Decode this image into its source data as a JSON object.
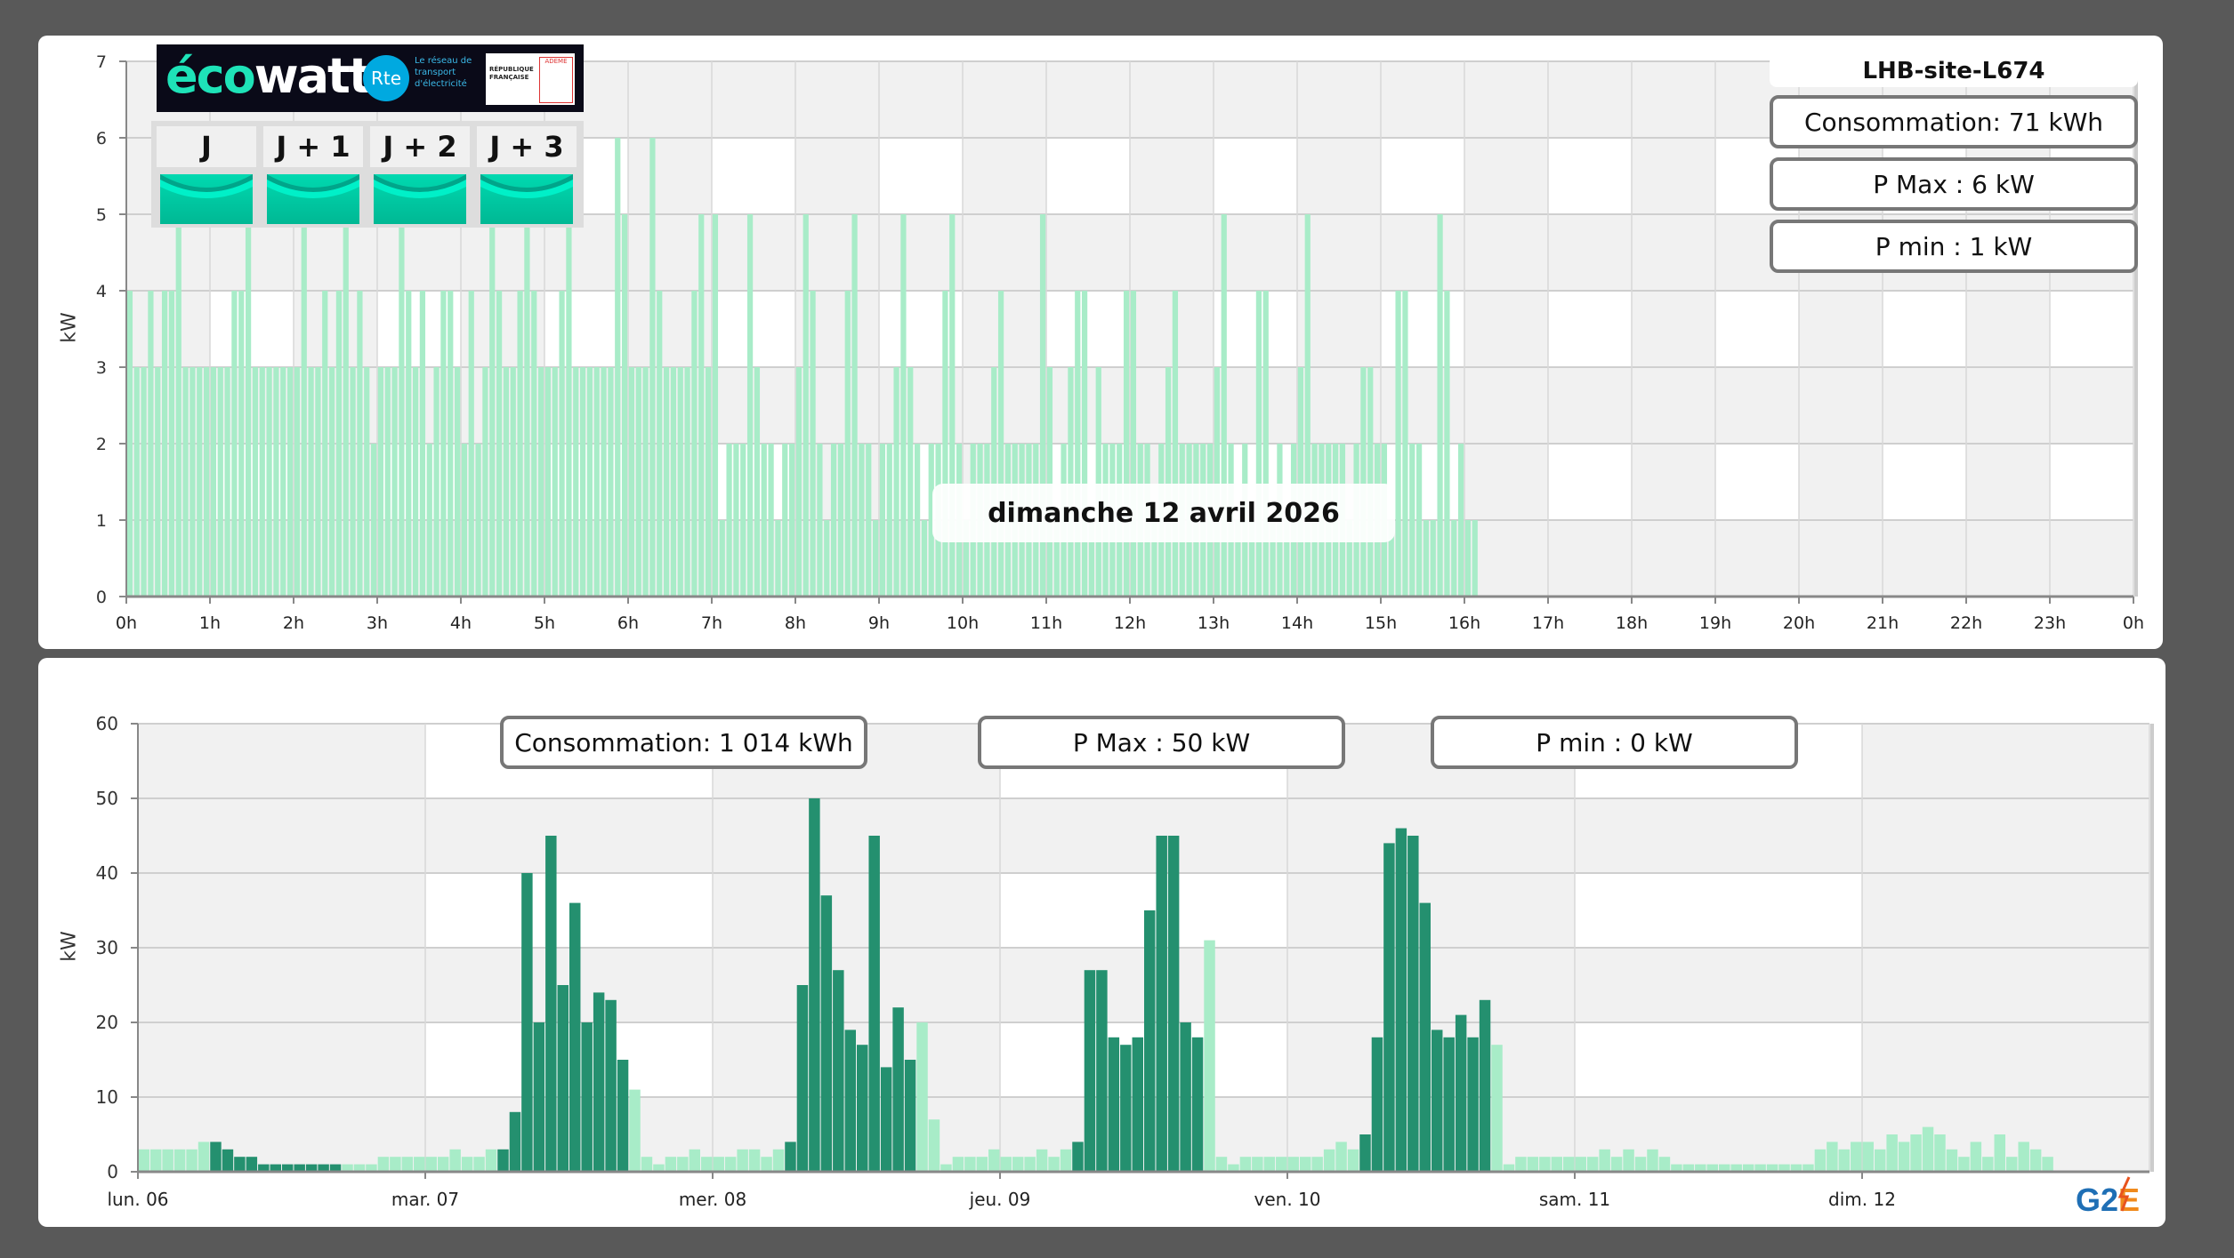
{
  "colors": {
    "bar_light": "#a8ecc8",
    "bar_dark": "#24906f",
    "grid_shade": "#f1f1f1",
    "ecowatt_signal": "#00c8a5"
  },
  "ecowatt": {
    "logo_text": "écowatt",
    "rte_text": "Rte",
    "rte_subtitle": "Le réseau de transport d'électricité",
    "republique_text": "RÉPUBLIQUE FRANÇAISE",
    "ademe_text": "ADEME",
    "days": [
      {
        "label": "J",
        "signal": "green"
      },
      {
        "label": "J + 1",
        "signal": "green"
      },
      {
        "label": "J + 2",
        "signal": "green"
      },
      {
        "label": "J + 3",
        "signal": "green"
      }
    ]
  },
  "top": {
    "site": "LHB-site-L674",
    "consommation": "Consommation: 71 kWh",
    "pmax": "P Max :  6 kW",
    "pmin": "P min : 1 kW",
    "date": "dimanche 12 avril 2026"
  },
  "bottom": {
    "consommation": "Consommation: 1 014 kWh",
    "pmax": "P Max :  50 kW",
    "pmin": "P min : 0 kW",
    "logo_text": "G2E"
  },
  "chart_data": [
    {
      "type": "bar",
      "ylabel": "kW",
      "ylim": [
        0,
        7
      ],
      "yticks": [
        "0",
        "1",
        "2",
        "3",
        "4",
        "5",
        "6",
        "7"
      ],
      "xticks": [
        "0h",
        "1h",
        "2h",
        "3h",
        "4h",
        "5h",
        "6h",
        "7h",
        "8h",
        "9h",
        "10h",
        "11h",
        "12h",
        "13h",
        "14h",
        "15h",
        "16h",
        "17h",
        "18h",
        "19h",
        "20h",
        "21h",
        "22h",
        "23h",
        "0h"
      ],
      "x_interval_minutes": 5,
      "grid": true,
      "hourly_values": [
        [
          4,
          3,
          3,
          4,
          3,
          4,
          4,
          5,
          3,
          3,
          3,
          3
        ],
        [
          3,
          3,
          3,
          4,
          4,
          5,
          3,
          3,
          3,
          3,
          3,
          3
        ],
        [
          3,
          5,
          3,
          3,
          4,
          3,
          4,
          5,
          3,
          4,
          3,
          2
        ],
        [
          3,
          3,
          3,
          5,
          4,
          3,
          4,
          2,
          3,
          4,
          4,
          3
        ],
        [
          2,
          4,
          2,
          3,
          5,
          4,
          3,
          3,
          4,
          6,
          4,
          3
        ],
        [
          3,
          3,
          4,
          6,
          3,
          3,
          3,
          3,
          3,
          3,
          6,
          5
        ],
        [
          3,
          3,
          3,
          6,
          4,
          3,
          3,
          3,
          3,
          4,
          5,
          3
        ],
        [
          5,
          1,
          2,
          2,
          2,
          5,
          3,
          2,
          2,
          1,
          2,
          2
        ],
        [
          3,
          5,
          4,
          2,
          1,
          2,
          2,
          4,
          5,
          2,
          2,
          1
        ],
        [
          2,
          2,
          3,
          5,
          3,
          2,
          1,
          2,
          2,
          4,
          5,
          2
        ],
        [
          1,
          2,
          2,
          2,
          3,
          4,
          2,
          2,
          2,
          2,
          2,
          5
        ],
        [
          3,
          1,
          2,
          3,
          4,
          4,
          1,
          3,
          2,
          2,
          2,
          4
        ],
        [
          4,
          2,
          2,
          1,
          2,
          3,
          4,
          2,
          2,
          2,
          2,
          2
        ],
        [
          3,
          5,
          2,
          1,
          2,
          1,
          4,
          4,
          1,
          2,
          1,
          2
        ],
        [
          3,
          5,
          2,
          2,
          2,
          2,
          2,
          1,
          2,
          3,
          3,
          2
        ],
        [
          2,
          1,
          4,
          4,
          2,
          2,
          1,
          1,
          5,
          4,
          1,
          2
        ],
        [
          1,
          1
        ]
      ]
    },
    {
      "type": "bar",
      "ylabel": "kW",
      "ylim": [
        0,
        60
      ],
      "yticks": [
        "0",
        "10",
        "20",
        "30",
        "40",
        "50",
        "60"
      ],
      "grid": true,
      "x_interval_minutes": 60,
      "days": [
        {
          "label": "lun. 06",
          "dark_hours": [
            6,
            17
          ],
          "values": [
            3,
            3,
            3,
            3,
            3,
            4,
            4,
            3,
            2,
            2,
            1,
            1,
            1,
            1,
            1,
            1,
            1,
            1,
            1,
            1,
            2,
            2,
            2,
            2
          ]
        },
        {
          "label": "mar. 07",
          "dark_hours": [
            6,
            17
          ],
          "values": [
            2,
            2,
            3,
            2,
            2,
            3,
            3,
            8,
            40,
            20,
            45,
            25,
            36,
            20,
            24,
            23,
            15,
            11,
            2,
            1,
            2,
            2,
            3,
            2
          ]
        },
        {
          "label": "mer. 08",
          "dark_hours": [
            6,
            17
          ],
          "values": [
            2,
            2,
            3,
            3,
            2,
            3,
            4,
            25,
            50,
            37,
            27,
            19,
            17,
            45,
            14,
            22,
            15,
            20,
            7,
            1,
            2,
            2,
            2,
            3
          ]
        },
        {
          "label": "jeu. 09",
          "dark_hours": [
            6,
            17
          ],
          "values": [
            2,
            2,
            2,
            3,
            2,
            3,
            4,
            27,
            27,
            18,
            17,
            18,
            35,
            45,
            45,
            20,
            18,
            31,
            2,
            1,
            2,
            2,
            2,
            2
          ]
        },
        {
          "label": "ven. 10",
          "dark_hours": [
            6,
            17
          ],
          "values": [
            2,
            2,
            2,
            3,
            4,
            3,
            5,
            18,
            44,
            46,
            45,
            36,
            19,
            18,
            21,
            18,
            23,
            17,
            1,
            2,
            2,
            2,
            2,
            2
          ]
        },
        {
          "label": "sam. 11",
          "dark_hours": null,
          "values": [
            2,
            2,
            3,
            2,
            3,
            2,
            3,
            2,
            1,
            1,
            1,
            1,
            1,
            1,
            1,
            1,
            1,
            1,
            1,
            1,
            3,
            4,
            3,
            4
          ]
        },
        {
          "label": "dim. 12",
          "dark_hours": null,
          "values": [
            4,
            3,
            5,
            4,
            5,
            6,
            5,
            3,
            2,
            4,
            2,
            5,
            2,
            4,
            3,
            2
          ]
        }
      ]
    }
  ]
}
